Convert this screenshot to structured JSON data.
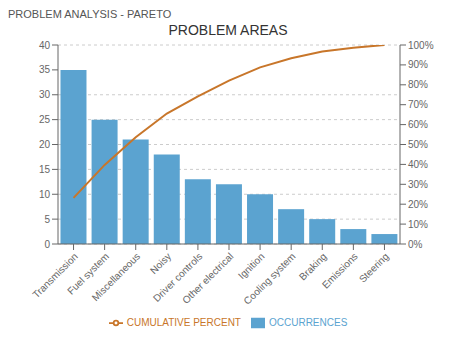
{
  "chart_data": {
    "type": "bar",
    "title": "PROBLEM AREAS",
    "subtitle": "PROBLEM ANALYSIS - PARETO",
    "categories": [
      "Transmission",
      "Fuel system",
      "Miscellaneous",
      "Noisy",
      "Driver controls",
      "Other electrical",
      "Ignition",
      "Cooling system",
      "Braking",
      "Emissions",
      "Steering"
    ],
    "series": [
      {
        "name": "OCCURRENCES",
        "type": "bar",
        "color": "#5BA3D0",
        "values": [
          35,
          25,
          21,
          18,
          13,
          12,
          10,
          7,
          5,
          3,
          2
        ]
      },
      {
        "name": "CUMULATIVE PERCENT",
        "type": "line",
        "color": "#C8762A",
        "axis": "y2",
        "values": [
          23.178807947019866,
          39.73509933774834,
          53.64238410596026,
          65.56291390728477,
          74.17218543046357,
          82.11920529801324,
          88.74172185430463,
          93.37748344370861,
          96.68874172185431,
          98.67549668874172,
          100.0
        ]
      }
    ],
    "ylim": [
      0,
      40
    ],
    "yticks": [
      0,
      5,
      10,
      15,
      20,
      25,
      30,
      35,
      40
    ],
    "y2lim": [
      0,
      100
    ],
    "y2ticks": [
      {
        "value": 0,
        "label": "0%"
      },
      {
        "value": 10,
        "label": "10%"
      },
      {
        "value": 20,
        "label": "20%"
      },
      {
        "value": 30,
        "label": "30%"
      },
      {
        "value": 40,
        "label": "40%"
      },
      {
        "value": 50,
        "label": "50%"
      },
      {
        "value": 60,
        "label": "60%"
      },
      {
        "value": 70,
        "label": "70%"
      },
      {
        "value": 80,
        "label": "80%"
      },
      {
        "value": 90,
        "label": "90%"
      },
      {
        "value": 100,
        "label": "100%"
      }
    ],
    "grid": true,
    "legend": "bottom"
  }
}
